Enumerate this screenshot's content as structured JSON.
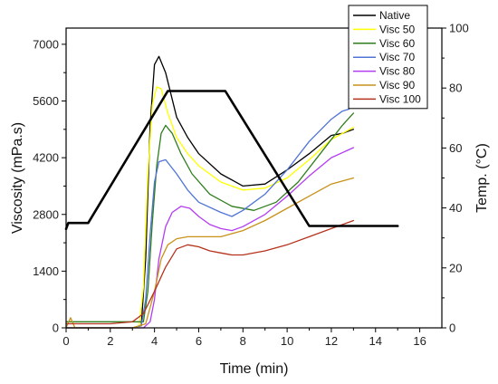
{
  "chart_data": {
    "type": "line",
    "xlabel": "Time (min)",
    "ylabel": "Viscosity (mPa.s)",
    "y2label": "Temp. (°C)",
    "xlim": [
      0,
      17
    ],
    "ylim": [
      0,
      7400
    ],
    "y2lim": [
      0,
      100
    ],
    "xticks": [
      "0",
      "2",
      "4",
      "6",
      "8",
      "10",
      "12",
      "14",
      "16"
    ],
    "yticks": [
      "0",
      "1400",
      "2800",
      "4200",
      "5600",
      "7000"
    ],
    "y2ticks": [
      "0",
      "20",
      "40",
      "60",
      "80",
      "100"
    ],
    "grid": false,
    "legend_position": "top-right",
    "series": [
      {
        "name": "Native",
        "color": "#000000",
        "axis": "left",
        "x": [
          0,
          0.3,
          1,
          2,
          3,
          3.4,
          3.6,
          3.8,
          4,
          4.2,
          4.5,
          5,
          5.5,
          6,
          7,
          8,
          9,
          10,
          11,
          12,
          12.5,
          13
        ],
        "y": [
          0,
          0,
          0,
          0,
          0,
          50,
          1700,
          5000,
          6500,
          6700,
          6300,
          5200,
          4700,
          4300,
          3800,
          3500,
          3550,
          3900,
          4300,
          4750,
          4800,
          4900
        ]
      },
      {
        "name": "Visc 50",
        "color": "#ffff00",
        "axis": "left",
        "x": [
          0,
          1,
          2,
          3,
          3.3,
          3.5,
          3.7,
          3.9,
          4.1,
          4.3,
          4.6,
          5,
          5.5,
          6,
          7,
          8,
          9,
          10,
          11,
          12,
          13
        ],
        "y": [
          0,
          0,
          0,
          0,
          20,
          1000,
          3800,
          5500,
          5950,
          5900,
          5300,
          4700,
          4300,
          4000,
          3600,
          3400,
          3450,
          3700,
          4150,
          4650,
          4950
        ]
      },
      {
        "name": "Visc 60",
        "color": "#2e7d1c",
        "axis": "left",
        "x": [
          0,
          1,
          2,
          3,
          3.5,
          3.7,
          3.9,
          4.1,
          4.3,
          4.5,
          4.8,
          5.2,
          5.7,
          6.5,
          7.5,
          8.5,
          9.5,
          10.5,
          11.5,
          12.5,
          13
        ],
        "y": [
          150,
          150,
          150,
          150,
          150,
          900,
          2600,
          4000,
          4800,
          5000,
          4800,
          4300,
          3800,
          3300,
          3000,
          2900,
          3100,
          3600,
          4300,
          5000,
          5300
        ]
      },
      {
        "name": "Visc 70",
        "color": "#4f74d6",
        "axis": "left",
        "x": [
          0,
          1,
          2,
          3,
          3.4,
          3.6,
          3.8,
          4,
          4.2,
          4.5,
          5,
          5.5,
          6,
          7,
          7.5,
          8,
          9,
          10,
          11,
          12,
          12.5,
          12.8
        ],
        "y": [
          0,
          0,
          0,
          0,
          50,
          700,
          2300,
          3600,
          4100,
          4150,
          3800,
          3400,
          3100,
          2850,
          2750,
          2900,
          3300,
          3900,
          4600,
          5150,
          5350,
          5400
        ]
      },
      {
        "name": "Visc 80",
        "color": "#b33cf0",
        "axis": "left",
        "x": [
          0,
          1,
          2,
          3,
          3.5,
          3.8,
          4,
          4.2,
          4.5,
          4.8,
          5.2,
          5.6,
          6,
          6.5,
          7,
          7.5,
          8,
          9,
          10,
          11,
          12,
          13
        ],
        "y": [
          0,
          0,
          0,
          0,
          0,
          150,
          700,
          1700,
          2500,
          2850,
          3000,
          2950,
          2750,
          2550,
          2450,
          2400,
          2500,
          2800,
          3250,
          3750,
          4200,
          4450
        ]
      },
      {
        "name": "Visc 90",
        "color": "#c8921a",
        "axis": "left",
        "x": [
          0,
          0.2,
          0.4,
          1,
          2,
          3,
          3.6,
          4,
          4.3,
          4.6,
          5,
          5.5,
          6,
          7,
          8,
          9,
          10,
          11,
          12,
          13
        ],
        "y": [
          0,
          250,
          0,
          0,
          0,
          0,
          100,
          900,
          1700,
          2050,
          2200,
          2250,
          2250,
          2250,
          2400,
          2650,
          2950,
          3250,
          3550,
          3700
        ]
      },
      {
        "name": "Visc 100",
        "color": "#b5321c",
        "axis": "left",
        "x": [
          0,
          1,
          2,
          3,
          3.5,
          4,
          4.5,
          5,
          5.5,
          6,
          6.5,
          7,
          7.5,
          8,
          9,
          10,
          11,
          12,
          13
        ],
        "y": [
          100,
          100,
          100,
          150,
          350,
          900,
          1500,
          1950,
          2050,
          2000,
          1900,
          1850,
          1800,
          1800,
          1900,
          2050,
          2250,
          2450,
          2650
        ]
      },
      {
        "name": "",
        "color": "#000000",
        "axis": "right",
        "x": [
          0,
          0.1,
          1,
          4.6,
          7.2,
          11,
          15
        ],
        "y": [
          33,
          35,
          35,
          79,
          79,
          34,
          34
        ]
      }
    ]
  }
}
